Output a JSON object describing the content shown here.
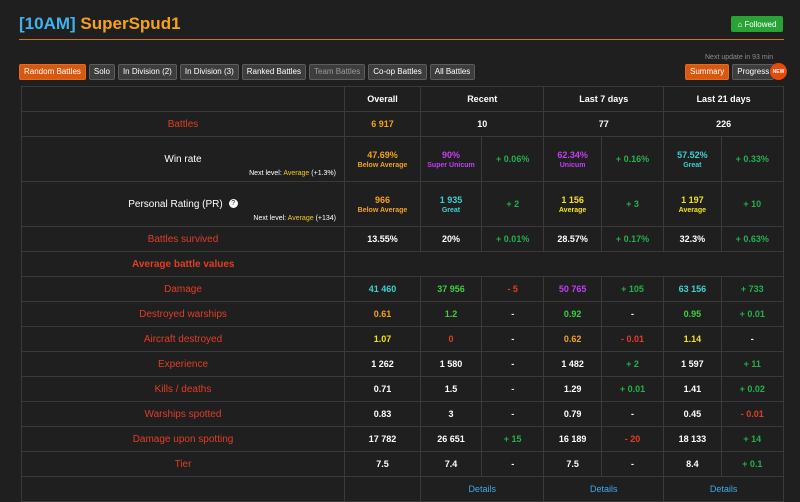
{
  "header": {
    "clan": "[10AM]",
    "name": "SuperSpud1",
    "followed": "Followed"
  },
  "next_update": "Next update in 93 min",
  "tabs": [
    {
      "label": "Random Battles",
      "active": true
    },
    {
      "label": "Solo"
    },
    {
      "label": "In Division (2)"
    },
    {
      "label": "In Division (3)"
    },
    {
      "label": "Ranked Battles"
    },
    {
      "label": "Team Battles",
      "dim": true
    },
    {
      "label": "Co-op Battles"
    },
    {
      "label": "All Battles"
    }
  ],
  "right_buttons": {
    "summary": "Summary",
    "progress": "Progress",
    "new_badge": "NEW"
  },
  "columns": {
    "overall": "Overall",
    "recent": "Recent",
    "last7": "Last 7 days",
    "last21": "Last 21 days"
  },
  "rows": {
    "battles": {
      "label": "Battles",
      "overall": "6 917",
      "recent": "10",
      "last7": "77",
      "last21": "226"
    },
    "winrate": {
      "label": "Win rate",
      "next_prefix": "Next level:",
      "next_level": "Average",
      "next_delta": "(+1.3%)",
      "overall": "47.69%",
      "overall_sub": "Below Average",
      "recent": "90%",
      "recent_sub": "Super Unicum",
      "recent_delta": "+ 0.06%",
      "last7": "62.34%",
      "last7_sub": "Unicum",
      "last7_delta": "+ 0.16%",
      "last21": "57.52%",
      "last21_sub": "Great",
      "last21_delta": "+ 0.33%"
    },
    "pr": {
      "label": "Personal Rating (PR)",
      "help": "?",
      "next_prefix": "Next level:",
      "next_level": "Average",
      "next_delta": "(+134)",
      "overall": "966",
      "overall_sub": "Below Average",
      "recent": "1 935",
      "recent_sub": "Great",
      "recent_delta": "+ 2",
      "last7": "1 156",
      "last7_sub": "Average",
      "last7_delta": "+ 3",
      "last21": "1 197",
      "last21_sub": "Average",
      "last21_delta": "+ 10"
    },
    "survived": {
      "label": "Battles survived",
      "overall": "13.55%",
      "recent": "20%",
      "recent_delta": "+ 0.01%",
      "last7": "28.57%",
      "last7_delta": "+ 0.17%",
      "last21": "32.3%",
      "last21_delta": "+ 0.63%"
    },
    "section": "Average battle values",
    "damage": {
      "label": "Damage",
      "overall": "41 460",
      "recent": "37 956",
      "recent_delta": "- 5",
      "last7": "50 765",
      "last7_delta": "+ 105",
      "last21": "63 156",
      "last21_delta": "+ 733"
    },
    "destroyed": {
      "label": "Destroyed warships",
      "overall": "0.61",
      "recent": "1.2",
      "recent_delta": "-",
      "last7": "0.92",
      "last7_delta": "-",
      "last21": "0.95",
      "last21_delta": "+ 0.01"
    },
    "aircraft": {
      "label": "Aircraft destroyed",
      "overall": "1.07",
      "recent": "0",
      "recent_delta": "-",
      "last7": "0.62",
      "last7_delta": "- 0.01",
      "last21": "1.14",
      "last21_delta": "-"
    },
    "experience": {
      "label": "Experience",
      "overall": "1 262",
      "recent": "1 580",
      "recent_delta": "-",
      "last7": "1 482",
      "last7_delta": "+ 2",
      "last21": "1 597",
      "last21_delta": "+ 11"
    },
    "kd": {
      "label": "Kills / deaths",
      "overall": "0.71",
      "recent": "1.5",
      "recent_delta": "-",
      "last7": "1.29",
      "last7_delta": "+ 0.01",
      "last21": "1.41",
      "last21_delta": "+ 0.02"
    },
    "spotted": {
      "label": "Warships spotted",
      "overall": "0.83",
      "recent": "3",
      "recent_delta": "-",
      "last7": "0.79",
      "last7_delta": "-",
      "last21": "0.45",
      "last21_delta": "- 0.01"
    },
    "dmg_spot": {
      "label": "Damage upon spotting",
      "overall": "17 782",
      "recent": "26 651",
      "recent_delta": "+ 15",
      "last7": "16 189",
      "last7_delta": "- 20",
      "last21": "18 133",
      "last21_delta": "+ 14"
    },
    "tier": {
      "label": "Tier",
      "overall": "7.5",
      "recent": "7.4",
      "recent_delta": "-",
      "last7": "7.5",
      "last7_delta": "-",
      "last21": "8.4",
      "last21_delta": "+ 0.1"
    }
  },
  "details_label": "Details"
}
